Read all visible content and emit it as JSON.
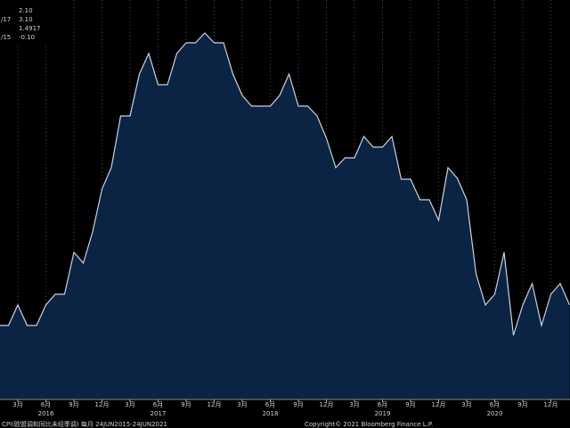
{
  "chart_data": {
    "type": "area",
    "x": [
      "2016-01",
      "2016-02",
      "2016-03",
      "2016-04",
      "2016-05",
      "2016-06",
      "2016-07",
      "2016-08",
      "2016-09",
      "2016-10",
      "2016-11",
      "2016-12",
      "2017-01",
      "2017-02",
      "2017-03",
      "2017-04",
      "2017-05",
      "2017-06",
      "2017-07",
      "2017-08",
      "2017-09",
      "2017-10",
      "2017-11",
      "2017-12",
      "2018-01",
      "2018-02",
      "2018-03",
      "2018-04",
      "2018-05",
      "2018-06",
      "2018-07",
      "2018-08",
      "2018-09",
      "2018-10",
      "2018-11",
      "2018-12",
      "2019-01",
      "2019-02",
      "2019-03",
      "2019-04",
      "2019-05",
      "2019-06",
      "2019-07",
      "2019-08",
      "2019-09",
      "2019-10",
      "2019-11",
      "2019-12",
      "2020-01",
      "2020-02",
      "2020-03",
      "2020-04",
      "2020-05",
      "2020-06",
      "2020-07",
      "2020-08",
      "2020-09",
      "2020-10",
      "2020-11",
      "2020-12",
      "2021-01",
      "2021-02"
    ],
    "values": [
      -0.18,
      -0.18,
      0.05,
      -0.18,
      -0.18,
      0.05,
      0.17,
      0.17,
      0.64,
      0.52,
      0.87,
      1.35,
      1.59,
      2.17,
      2.17,
      2.64,
      2.87,
      2.52,
      2.52,
      2.87,
      2.99,
      2.99,
      3.1,
      2.99,
      2.99,
      2.64,
      2.4,
      2.28,
      2.28,
      2.28,
      2.4,
      2.64,
      2.28,
      2.28,
      2.17,
      1.92,
      1.59,
      1.7,
      1.7,
      1.94,
      1.82,
      1.82,
      1.94,
      1.46,
      1.46,
      1.23,
      1.23,
      1.0,
      1.59,
      1.47,
      1.23,
      0.4,
      0.05,
      0.17,
      0.64,
      -0.29,
      0.05,
      0.29,
      -0.18,
      0.17,
      0.29,
      0.05
    ],
    "color": "#0b2444",
    "line_color": "#c9d2e3",
    "ylim": [
      -1.01,
      3.47
    ],
    "xticks": [
      {
        "value": "2016-03",
        "label": "3月"
      },
      {
        "value": "2016-06",
        "label": "6月"
      },
      {
        "value": "2016-09",
        "label": "9月"
      },
      {
        "value": "2016-12",
        "label": "12月"
      },
      {
        "value": "2017-03",
        "label": "3月"
      },
      {
        "value": "2017-06",
        "label": "6月"
      },
      {
        "value": "2017-09",
        "label": "9月"
      },
      {
        "value": "2017-12",
        "label": "12月"
      },
      {
        "value": "2018-03",
        "label": "3月"
      },
      {
        "value": "2018-06",
        "label": "6月"
      },
      {
        "value": "2018-09",
        "label": "9月"
      },
      {
        "value": "2018-12",
        "label": "12月"
      },
      {
        "value": "2019-03",
        "label": "3月"
      },
      {
        "value": "2019-06",
        "label": "6月"
      },
      {
        "value": "2019-09",
        "label": "9月"
      },
      {
        "value": "2019-12",
        "label": "12月"
      },
      {
        "value": "2020-03",
        "label": "3月"
      },
      {
        "value": "2020-06",
        "label": "6月"
      },
      {
        "value": "2020-09",
        "label": "9月"
      },
      {
        "value": "2020-12",
        "label": "12月"
      }
    ],
    "year_labels": [
      {
        "value": "2016-06",
        "label": "2016"
      },
      {
        "value": "2017-06",
        "label": "2017"
      },
      {
        "value": "2018-06",
        "label": "2018"
      },
      {
        "value": "2019-06",
        "label": "2019"
      },
      {
        "value": "2020-06",
        "label": "2020"
      }
    ],
    "legend_rows": [
      {
        "value": "2.10"
      },
      {
        "label": "/17",
        "value": "3.10"
      },
      {
        "value": "1.4917"
      },
      {
        "label": "/15",
        "value": "-0.10"
      }
    ],
    "footer_left": "CPI(欧盟调和同比未经季调)  每月 24JUN2015-24JUN2021",
    "footer_right": "Copyright© 2021 Bloomberg Finance L.P."
  }
}
